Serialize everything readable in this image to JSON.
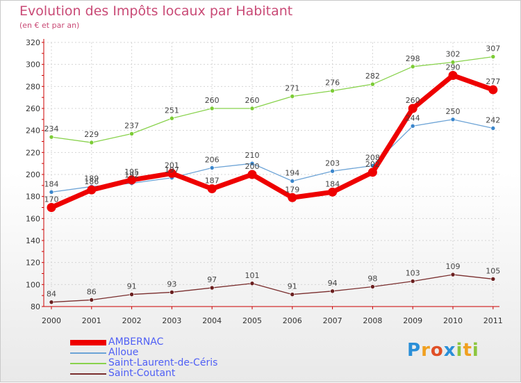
{
  "chart_data": {
    "type": "line",
    "title": "Evolution des Impôts locaux par Habitant",
    "subtitle": "(en € et par an)",
    "xlabel": "",
    "ylabel": "",
    "ylim": [
      80,
      320
    ],
    "yticks": [
      80,
      100,
      120,
      140,
      160,
      180,
      200,
      220,
      240,
      260,
      280,
      300,
      320
    ],
    "grid": true,
    "legend_position": "bottom-left",
    "categories": [
      "2000",
      "2001",
      "2002",
      "2003",
      "2004",
      "2005",
      "2006",
      "2007",
      "2008",
      "2009",
      "2010",
      "2011"
    ],
    "series": [
      {
        "name": "Saint-Laurent-de-Céris",
        "color": "#88d24c",
        "dot_color": "#7ccc36",
        "values": [
          234,
          229,
          237,
          251,
          260,
          260,
          271,
          276,
          282,
          298,
          302,
          307
        ]
      },
      {
        "name": "Alloue",
        "color": "#6ca3d6",
        "dot_color": "#3b86cc",
        "values": [
          184,
          189,
          192,
          197,
          206,
          210,
          194,
          203,
          208,
          244,
          250,
          242
        ]
      },
      {
        "name": "AMBERNAC",
        "color": "#ee0000",
        "dot_color": "#ee0000",
        "values": [
          170,
          186,
          195,
          201,
          187,
          200,
          179,
          184,
          202,
          260,
          290,
          277
        ]
      },
      {
        "name": "Saint-Coutant",
        "color": "#7a2e2e",
        "dot_color": "#6a1f1f",
        "values": [
          84,
          86,
          91,
          93,
          97,
          101,
          91,
          94,
          98,
          103,
          109,
          105
        ]
      }
    ]
  },
  "brand": {
    "name": "Proxiti",
    "letters": [
      "P",
      "r",
      "o",
      "x",
      "i",
      "t",
      "i"
    ],
    "colors": [
      "#2a8fd8",
      "#f0a020",
      "#e04f26",
      "#2a8fd8",
      "#8cc63f",
      "#f0a020",
      "#8cc63f"
    ]
  }
}
